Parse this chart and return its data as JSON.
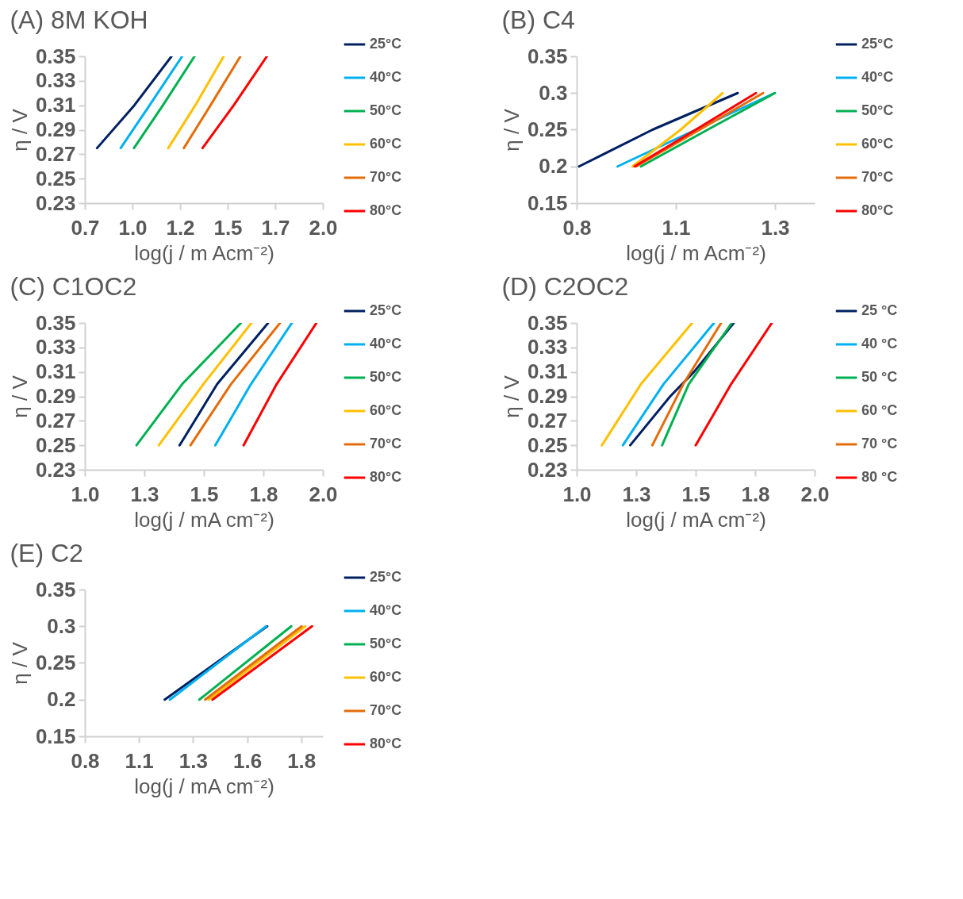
{
  "chart_data": [
    {
      "type": "line",
      "title": "(A) 8M KOH",
      "xlabel": "log(j / m Acm⁻²)",
      "ylabel": "η / V",
      "xlim": [
        0.75,
        2.0
      ],
      "ylim": [
        0.23,
        0.35
      ],
      "xticks": [
        {
          "value": 0.75,
          "label": "0.7"
        },
        {
          "value": 1.0,
          "label": "1.0"
        },
        {
          "value": 1.25,
          "label": "1.2"
        },
        {
          "value": 1.5,
          "label": "1.5"
        },
        {
          "value": 1.75,
          "label": "1.7"
        },
        {
          "value": 2.0,
          "label": "2.0"
        }
      ],
      "yticks": [
        0.23,
        0.25,
        0.27,
        0.29,
        0.31,
        0.33,
        0.35
      ],
      "grid": false,
      "legend": "top right",
      "series": [
        {
          "name": "25°C",
          "color": "#002060",
          "x": [
            0.814,
            1.01,
            1.205
          ],
          "values": [
            0.275,
            0.31,
            0.35
          ]
        },
        {
          "name": "40°C",
          "color": "#00b0f0",
          "x": [
            0.938,
            1.09,
            1.261
          ],
          "values": [
            0.275,
            0.31,
            0.35
          ]
        },
        {
          "name": "50°C",
          "color": "#00b050",
          "x": [
            1.008,
            1.16,
            1.326
          ],
          "values": [
            0.275,
            0.31,
            0.35
          ]
        },
        {
          "name": "60°C",
          "color": "#ffc000",
          "x": [
            1.188,
            1.33,
            1.479
          ],
          "values": [
            0.275,
            0.31,
            0.35
          ]
        },
        {
          "name": "70°C",
          "color": "#e46c0a",
          "x": [
            1.27,
            1.41,
            1.567
          ],
          "values": [
            0.275,
            0.31,
            0.35
          ]
        },
        {
          "name": "80°C",
          "color": "#ff0000",
          "x": [
            1.368,
            1.532,
            1.706
          ],
          "values": [
            0.275,
            0.31,
            0.35
          ]
        }
      ]
    },
    {
      "type": "line",
      "title": "(B) C4",
      "xlabel": "log(j / m Acm⁻²)",
      "ylabel": "η / V",
      "xlim": [
        0.8,
        1.4
      ],
      "ylim": [
        0.15,
        0.35
      ],
      "xticks": [
        0.8,
        {
          "value": 1.05,
          "label": "1.1"
        },
        1.3
      ],
      "yticks": [
        0.15,
        0.2,
        0.25,
        0.3,
        0.35
      ],
      "grid": false,
      "legend": "top right",
      "series": [
        {
          "name": "25°C",
          "color": "#002060",
          "x": [
            0.806,
            0.991,
            1.206
          ],
          "values": [
            0.2,
            0.25,
            0.3
          ]
        },
        {
          "name": "40°C",
          "color": "#00b0f0",
          "x": [
            0.903,
            1.1,
            1.299
          ],
          "values": [
            0.2,
            0.25,
            0.3
          ]
        },
        {
          "name": "50°C",
          "color": "#00b050",
          "x": [
            0.962,
            1.13,
            1.3
          ],
          "values": [
            0.2,
            0.25,
            0.3
          ]
        },
        {
          "name": "60°C",
          "color": "#ffc000",
          "x": [
            0.941,
            1.062,
            1.168
          ],
          "values": [
            0.2,
            0.25,
            0.3
          ]
        },
        {
          "name": "70°C",
          "color": "#e46c0a",
          "x": [
            0.95,
            1.11,
            1.27
          ],
          "values": [
            0.2,
            0.25,
            0.3
          ]
        },
        {
          "name": "80°C",
          "color": "#ff0000",
          "x": [
            0.946,
            1.1,
            1.252
          ],
          "values": [
            0.2,
            0.25,
            0.3
          ]
        }
      ]
    },
    {
      "type": "line",
      "title": "(C) C1OC2",
      "xlabel": "log(j / mA cm⁻²)",
      "ylabel": "η / V",
      "xlim": [
        1.0,
        2.0
      ],
      "ylim": [
        0.23,
        0.35
      ],
      "xticks": [
        {
          "value": 1.0,
          "label": "1.0"
        },
        {
          "value": 1.25,
          "label": "1.3"
        },
        {
          "value": 1.5,
          "label": "1.5"
        },
        {
          "value": 1.75,
          "label": "1.8"
        },
        {
          "value": 2.0,
          "label": "2.0"
        }
      ],
      "yticks": [
        0.23,
        0.25,
        0.27,
        0.29,
        0.31,
        0.33,
        0.35
      ],
      "grid": false,
      "legend": "top right",
      "series": [
        {
          "name": "25°C",
          "color": "#002060",
          "x": [
            1.398,
            1.556,
            1.77
          ],
          "values": [
            0.25,
            0.3,
            0.35
          ]
        },
        {
          "name": "40°C",
          "color": "#00b0f0",
          "x": [
            1.548,
            1.698,
            1.87
          ],
          "values": [
            0.25,
            0.3,
            0.35
          ]
        },
        {
          "name": "50°C",
          "color": "#00b050",
          "x": [
            1.217,
            1.409,
            1.656
          ],
          "values": [
            0.25,
            0.3,
            0.35
          ]
        },
        {
          "name": "60°C",
          "color": "#ffc000",
          "x": [
            1.311,
            1.498,
            1.7
          ],
          "values": [
            0.25,
            0.3,
            0.35
          ]
        },
        {
          "name": "70°C",
          "color": "#e46c0a",
          "x": [
            1.444,
            1.614,
            1.82
          ],
          "values": [
            0.25,
            0.3,
            0.35
          ]
        },
        {
          "name": "80°C",
          "color": "#ff0000",
          "x": [
            1.667,
            1.806,
            1.973
          ],
          "values": [
            0.25,
            0.3,
            0.35
          ]
        }
      ]
    },
    {
      "type": "line",
      "title": "(D) C2OC2",
      "xlabel": "log(j / mA cm⁻²)",
      "ylabel": "η / V",
      "xlim": [
        1.0,
        2.0
      ],
      "ylim": [
        0.23,
        0.35
      ],
      "xticks": [
        {
          "value": 1.0,
          "label": "1.0"
        },
        {
          "value": 1.25,
          "label": "1.3"
        },
        {
          "value": 1.5,
          "label": "1.5"
        },
        {
          "value": 1.75,
          "label": "1.8"
        },
        {
          "value": 2.0,
          "label": "2.0"
        }
      ],
      "yticks": [
        0.23,
        0.25,
        0.27,
        0.29,
        0.31,
        0.33,
        0.35
      ],
      "grid": false,
      "legend": "top right",
      "series": [
        {
          "name": "25 °C",
          "color": "#002060",
          "x": [
            1.225,
            1.393,
            1.493,
            1.66
          ],
          "values": [
            0.25,
            0.29,
            0.31,
            0.35
          ]
        },
        {
          "name": "40 °C",
          "color": "#00b0f0",
          "x": [
            1.194,
            1.365,
            1.577
          ],
          "values": [
            0.25,
            0.3,
            0.35
          ]
        },
        {
          "name": "50 °C",
          "color": "#00b050",
          "x": [
            1.359,
            1.471,
            1.652
          ],
          "values": [
            0.25,
            0.3,
            0.35
          ]
        },
        {
          "name": "60 °C",
          "color": "#ffc000",
          "x": [
            1.106,
            1.27,
            1.485
          ],
          "values": [
            0.25,
            0.3,
            0.35
          ]
        },
        {
          "name": "70 °C",
          "color": "#e46c0a",
          "x": [
            1.318,
            1.448,
            1.607
          ],
          "values": [
            0.25,
            0.3,
            0.35
          ]
        },
        {
          "name": "80 °C",
          "color": "#ff0000",
          "x": [
            1.5,
            1.649,
            1.82
          ],
          "values": [
            0.25,
            0.3,
            0.35
          ]
        }
      ]
    },
    {
      "type": "line",
      "title": "(E) C2",
      "xlabel": "log(j / mA cm⁻²)",
      "ylabel": "η / V",
      "xlim": [
        0.8,
        1.9
      ],
      "ylim": [
        0.15,
        0.35
      ],
      "xticks": [
        0.8,
        {
          "value": 1.05,
          "label": "1.1"
        },
        1.3,
        {
          "value": 1.55,
          "label": "1.6"
        },
        1.8
      ],
      "yticks": [
        0.15,
        0.2,
        0.25,
        0.3,
        0.35
      ],
      "grid": false,
      "legend": "top right",
      "series": [
        {
          "name": "25°C",
          "color": "#002060",
          "x": [
            1.169,
            1.643
          ],
          "values": [
            0.2,
            0.3
          ]
        },
        {
          "name": "40°C",
          "color": "#00b0f0",
          "x": [
            1.193,
            1.638
          ],
          "values": [
            0.2,
            0.3
          ]
        },
        {
          "name": "50°C",
          "color": "#00b050",
          "x": [
            1.329,
            1.754
          ],
          "values": [
            0.2,
            0.3
          ]
        },
        {
          "name": "60°C",
          "color": "#ffc000",
          "x": [
            1.372,
            1.819
          ],
          "values": [
            0.2,
            0.3
          ]
        },
        {
          "name": "70°C",
          "color": "#e46c0a",
          "x": [
            1.356,
            1.802
          ],
          "values": [
            0.2,
            0.3
          ]
        },
        {
          "name": "80°C",
          "color": "#ff0000",
          "x": [
            1.39,
            1.85
          ],
          "values": [
            0.2,
            0.3
          ]
        }
      ]
    }
  ]
}
